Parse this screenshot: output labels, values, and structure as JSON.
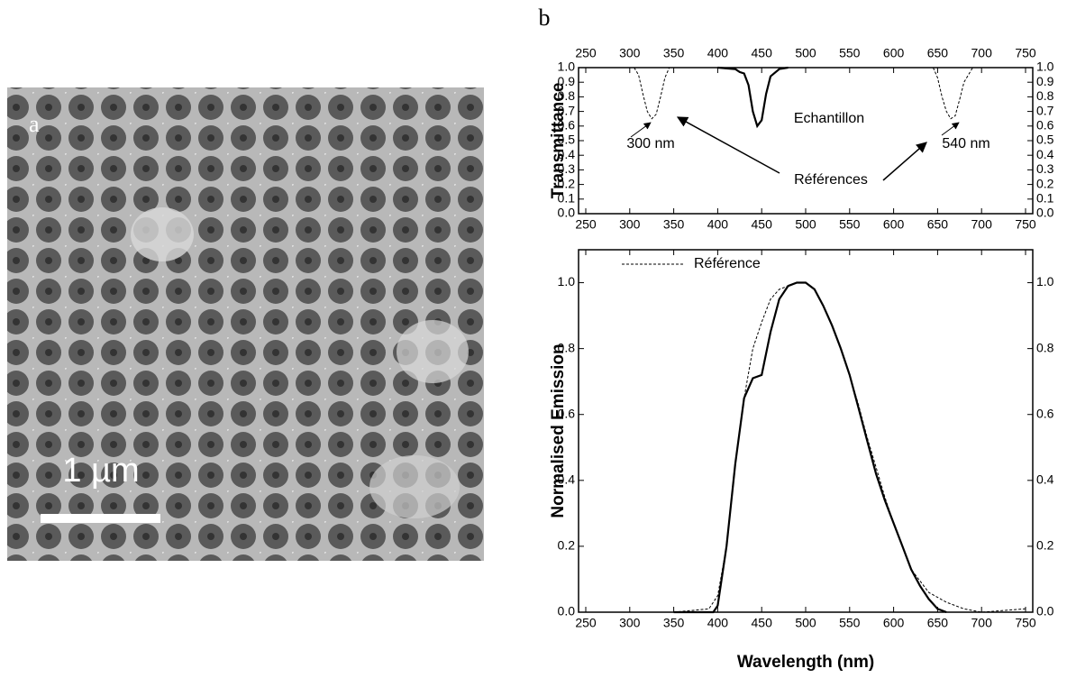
{
  "panel_a": {
    "label": "a",
    "scale_bar": "1 µm"
  },
  "panel_b_label": "b",
  "chart_data": [
    {
      "type": "line",
      "ylabel": "Transmittance",
      "xlim": [
        250,
        750
      ],
      "xticks": [
        250,
        300,
        350,
        400,
        450,
        500,
        550,
        600,
        650,
        700,
        750
      ],
      "ylim": [
        0,
        1
      ],
      "yticks": [
        {
          "value": 0,
          "label": "0.0"
        },
        0.1,
        0.2,
        0.3,
        0.4,
        0.5,
        0.6,
        0.7,
        0.8,
        0.9,
        {
          "value": 1,
          "label": "1.0"
        }
      ],
      "xtick_labels": [
        "top",
        "bottom"
      ],
      "annotations": [
        "Echantillon",
        "300 nm",
        "540 nm",
        "Références"
      ],
      "series": [
        {
          "color": "#000000",
          "line_style": "solid",
          "x": [
            400,
            420,
            425,
            430,
            435,
            440,
            445,
            450,
            455,
            460,
            470,
            480
          ],
          "values": [
            1,
            0.99,
            0.97,
            0.96,
            0.88,
            0.7,
            0.6,
            0.64,
            0.82,
            0.94,
            0.99,
            1
          ]
        },
        {
          "color": "#000000",
          "line_style": "dashed",
          "x": [
            305,
            310,
            315,
            320,
            325,
            330,
            335,
            340,
            345,
            500,
            645,
            650,
            655,
            660,
            665,
            670,
            675,
            680,
            690
          ],
          "values": [
            1,
            0.95,
            0.82,
            0.7,
            0.65,
            0.68,
            0.8,
            0.93,
            1,
            null,
            1,
            0.93,
            0.8,
            0.7,
            0.65,
            0.67,
            0.78,
            0.9,
            1
          ]
        }
      ]
    },
    {
      "type": "line",
      "xlabel": "Wavelength (nm)",
      "ylabel": "Normalised Emission",
      "xlim": [
        250,
        750
      ],
      "xticks": [
        250,
        300,
        350,
        400,
        450,
        500,
        550,
        600,
        650,
        700,
        750
      ],
      "ylim": [
        0,
        1.1
      ],
      "yticks": [
        {
          "value": 0,
          "label": "0.0"
        },
        0.2,
        0.4,
        0.6,
        0.8,
        {
          "value": 1,
          "label": "1.0"
        }
      ],
      "xtick_labels": [
        "bottom"
      ],
      "legend": "upper left",
      "series": [
        {
          "color": "#000000",
          "line_style": "solid",
          "x": [
            350,
            395,
            400,
            410,
            420,
            430,
            440,
            450,
            460,
            470,
            480,
            490,
            500,
            510,
            520,
            530,
            540,
            550,
            560,
            570,
            580,
            590,
            600,
            610,
            620,
            630,
            640,
            650,
            660
          ],
          "values": [
            0,
            0,
            0.02,
            0.2,
            0.45,
            0.65,
            0.71,
            0.72,
            0.85,
            0.95,
            0.99,
            1,
            1,
            0.98,
            0.93,
            0.87,
            0.8,
            0.72,
            0.62,
            0.52,
            0.42,
            0.34,
            0.27,
            0.2,
            0.13,
            0.08,
            0.04,
            0.01,
            0
          ]
        },
        {
          "name": "Référence",
          "color": "#000000",
          "line_style": "dashed",
          "x": [
            350,
            390,
            400,
            410,
            420,
            430,
            440,
            450,
            460,
            470,
            480,
            490,
            500,
            510,
            520,
            530,
            540,
            550,
            560,
            570,
            580,
            590,
            600,
            620,
            640,
            660,
            680,
            700,
            750
          ],
          "values": [
            0,
            0.01,
            0.05,
            0.2,
            0.45,
            0.65,
            0.8,
            0.88,
            0.95,
            0.98,
            0.99,
            1,
            1,
            0.98,
            0.93,
            0.87,
            0.8,
            0.72,
            0.63,
            0.53,
            0.44,
            0.35,
            0.27,
            0.13,
            0.06,
            0.03,
            0.01,
            0,
            0.01
          ]
        }
      ]
    }
  ]
}
